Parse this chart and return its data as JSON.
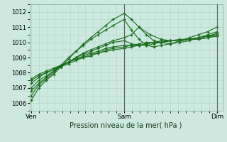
{
  "xlabel": "Pression niveau de la mer( hPa )",
  "ylim": [
    1005.5,
    1012.5
  ],
  "yticks": [
    1006,
    1007,
    1008,
    1009,
    1010,
    1011,
    1012
  ],
  "background_color": "#cce8df",
  "grid_color": "#b0d4c8",
  "line_color": "#1a6e1a",
  "xtick_labels": [
    "Ven",
    "Sam",
    "Dim"
  ],
  "xtick_positions": [
    0,
    0.5,
    1.0
  ],
  "xlim": [
    -0.01,
    1.03
  ],
  "vline_positions": [
    0.5,
    1.0
  ],
  "series": [
    {
      "x": [
        0.0,
        0.04,
        0.08,
        0.12,
        0.16,
        0.2,
        0.24,
        0.28,
        0.32,
        0.36,
        0.4,
        0.44,
        0.5,
        0.54,
        0.58,
        0.62,
        0.66,
        0.7,
        0.75,
        0.8,
        0.85,
        0.9,
        0.95,
        1.0
      ],
      "y": [
        1006.2,
        1007.0,
        1007.5,
        1007.9,
        1008.4,
        1008.9,
        1009.4,
        1009.9,
        1010.3,
        1010.7,
        1011.1,
        1011.5,
        1011.9,
        1011.5,
        1011.0,
        1010.5,
        1010.1,
        1010.0,
        1009.9,
        1010.1,
        1010.3,
        1010.5,
        1010.7,
        1011.0
      ]
    },
    {
      "x": [
        0.0,
        0.04,
        0.08,
        0.12,
        0.16,
        0.2,
        0.24,
        0.28,
        0.32,
        0.36,
        0.4,
        0.44,
        0.5,
        0.54,
        0.58,
        0.62,
        0.66,
        0.7,
        0.75,
        0.8,
        0.85,
        0.9,
        0.95,
        1.0
      ],
      "y": [
        1006.5,
        1007.2,
        1007.6,
        1008.0,
        1008.5,
        1009.0,
        1009.4,
        1009.8,
        1010.2,
        1010.5,
        1010.8,
        1011.1,
        1011.5,
        1010.8,
        1010.2,
        1009.8,
        1009.7,
        1009.8,
        1009.9,
        1010.0,
        1010.1,
        1010.3,
        1010.5,
        1010.7
      ]
    },
    {
      "x": [
        0.0,
        0.04,
        0.08,
        0.12,
        0.16,
        0.2,
        0.24,
        0.28,
        0.32,
        0.36,
        0.4,
        0.44,
        0.5,
        0.54,
        0.58,
        0.62,
        0.66,
        0.7,
        0.75,
        0.8,
        0.85,
        0.9,
        0.95,
        1.0
      ],
      "y": [
        1007.0,
        1007.5,
        1007.8,
        1008.1,
        1008.4,
        1008.7,
        1009.0,
        1009.2,
        1009.4,
        1009.6,
        1009.8,
        1010.0,
        1010.1,
        1009.9,
        1009.8,
        1009.8,
        1009.9,
        1010.0,
        1010.1,
        1010.1,
        1010.2,
        1010.3,
        1010.4,
        1010.6
      ]
    },
    {
      "x": [
        0.0,
        0.04,
        0.08,
        0.12,
        0.16,
        0.2,
        0.24,
        0.28,
        0.32,
        0.36,
        0.4,
        0.44,
        0.5,
        0.54,
        0.58,
        0.62,
        0.66,
        0.7,
        0.75,
        0.8,
        0.85,
        0.9,
        0.95,
        1.0
      ],
      "y": [
        1007.3,
        1007.7,
        1008.0,
        1008.2,
        1008.5,
        1008.7,
        1008.9,
        1009.1,
        1009.3,
        1009.4,
        1009.6,
        1009.7,
        1009.8,
        1009.8,
        1009.8,
        1009.9,
        1010.0,
        1010.0,
        1010.1,
        1010.1,
        1010.2,
        1010.2,
        1010.3,
        1010.5
      ]
    },
    {
      "x": [
        0.0,
        0.04,
        0.08,
        0.12,
        0.16,
        0.2,
        0.24,
        0.28,
        0.32,
        0.36,
        0.4,
        0.44,
        0.5,
        0.54,
        0.58,
        0.62,
        0.66,
        0.7,
        0.75,
        0.8,
        0.85,
        0.9,
        0.95,
        1.0
      ],
      "y": [
        1007.5,
        1007.8,
        1008.0,
        1008.2,
        1008.4,
        1008.6,
        1008.8,
        1009.0,
        1009.1,
        1009.3,
        1009.4,
        1009.5,
        1009.6,
        1009.7,
        1009.8,
        1009.9,
        1010.0,
        1010.0,
        1010.1,
        1010.1,
        1010.2,
        1010.2,
        1010.3,
        1010.4
      ]
    },
    {
      "x": [
        0.0,
        0.04,
        0.08,
        0.12,
        0.16,
        0.2,
        0.24,
        0.28,
        0.32,
        0.36,
        0.4,
        0.44,
        0.5,
        0.54,
        0.58,
        0.62,
        0.66,
        0.7,
        0.75,
        0.8,
        0.85,
        0.9,
        0.95,
        1.0
      ],
      "y": [
        1007.6,
        1007.9,
        1008.1,
        1008.3,
        1008.5,
        1008.7,
        1008.9,
        1009.0,
        1009.2,
        1009.3,
        1009.5,
        1009.6,
        1009.7,
        1009.8,
        1009.9,
        1010.0,
        1010.0,
        1010.1,
        1010.1,
        1010.2,
        1010.2,
        1010.3,
        1010.4,
        1010.5
      ]
    },
    {
      "x": [
        0.0,
        0.04,
        0.08,
        0.12,
        0.16,
        0.2,
        0.24,
        0.28,
        0.32,
        0.36,
        0.4,
        0.44,
        0.5,
        0.54,
        0.58,
        0.64,
        0.7,
        0.75,
        0.8,
        0.85,
        0.9,
        0.95,
        1.0
      ],
      "y": [
        1006.8,
        1007.3,
        1007.7,
        1008.1,
        1008.4,
        1008.7,
        1009.0,
        1009.3,
        1009.5,
        1009.7,
        1009.9,
        1010.1,
        1010.3,
        1010.5,
        1011.0,
        1010.5,
        1010.2,
        1010.1,
        1010.1,
        1010.2,
        1010.3,
        1010.4,
        1010.5
      ]
    }
  ],
  "ytick_fontsize": 6,
  "xtick_fontsize": 6.5,
  "xlabel_fontsize": 7
}
